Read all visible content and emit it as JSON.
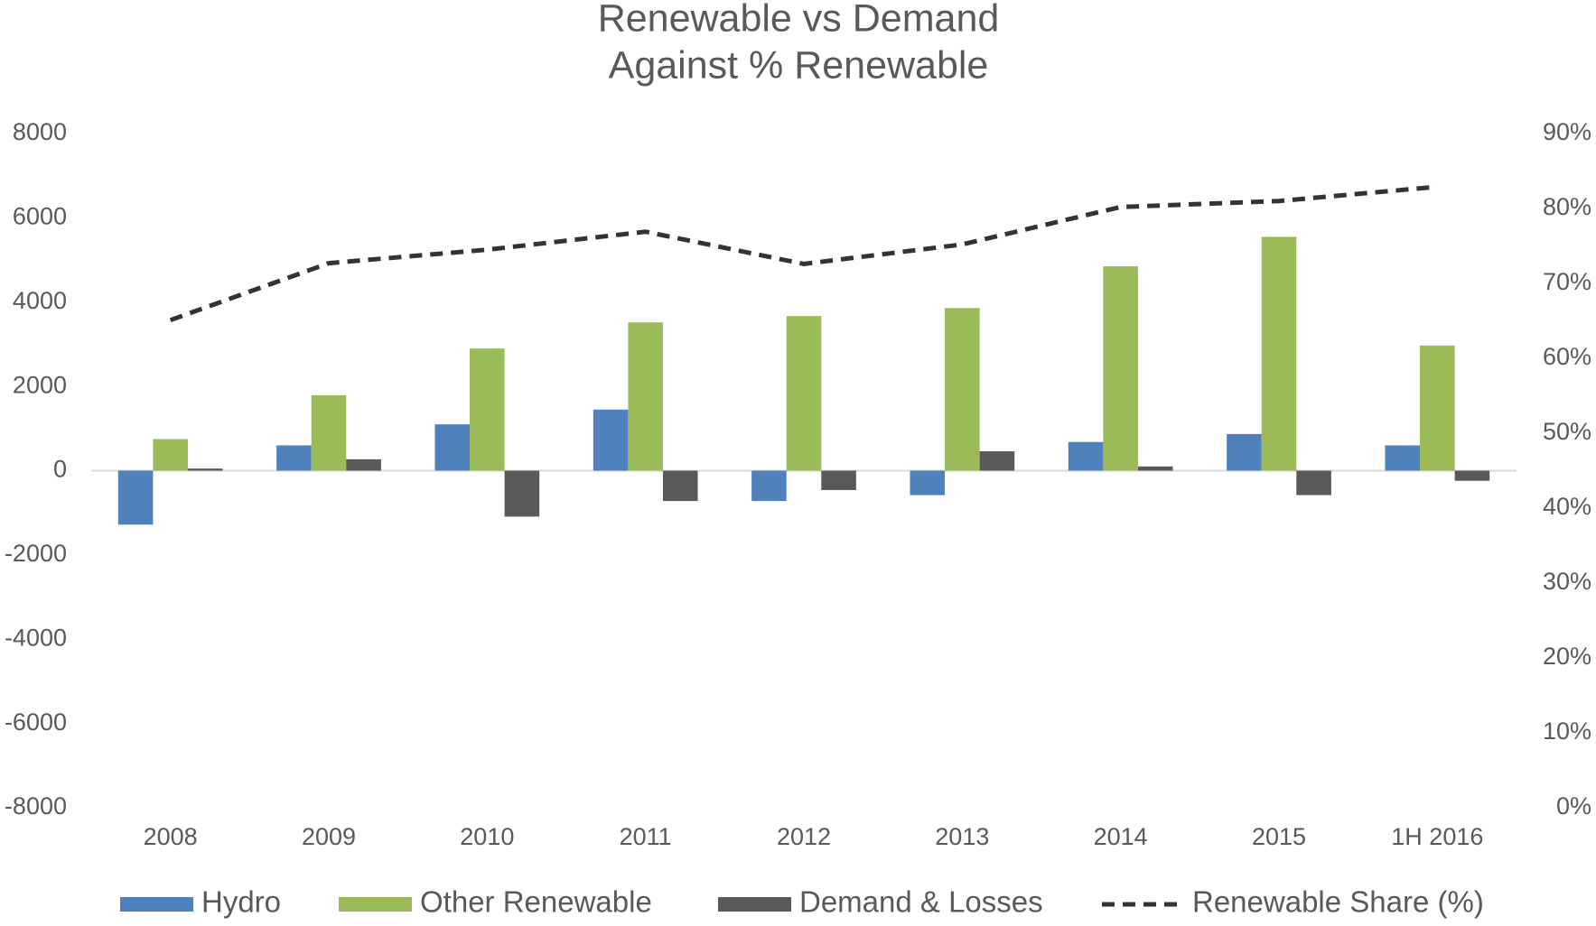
{
  "chart_data": {
    "type": "bar_line",
    "title": "Renewable vs Demand",
    "subtitle": "Against % Renewable",
    "categories": [
      "2008",
      "2009",
      "2010",
      "2011",
      "2012",
      "2013",
      "2014",
      "2015",
      "1H 2016"
    ],
    "series": [
      {
        "name": "Hydro",
        "color": "#4f81bd",
        "type": "bar",
        "values": [
          -1280,
          600,
          1100,
          1450,
          -720,
          -580,
          680,
          870,
          600
        ]
      },
      {
        "name": "Other Renewable",
        "color": "#9bbb59",
        "type": "bar",
        "values": [
          750,
          1790,
          2900,
          3520,
          3670,
          3860,
          4850,
          5550,
          2970
        ]
      },
      {
        "name": "Demand & Losses",
        "color": "#595959",
        "type": "bar",
        "values": [
          50,
          270,
          -1090,
          -720,
          -460,
          460,
          100,
          -580,
          -240
        ]
      },
      {
        "name": "Renewable Share (%)",
        "color": "#333333",
        "type": "line",
        "axis": "y2",
        "values": [
          65.1,
          72.7,
          74.5,
          76.9,
          72.6,
          75.2,
          80.2,
          81.0,
          82.9
        ]
      }
    ],
    "ylim": [
      -8000,
      8000
    ],
    "yticks": [
      -8000,
      -6000,
      -4000,
      -2000,
      0,
      2000,
      4000,
      6000,
      8000
    ],
    "y2lim": [
      0,
      90
    ],
    "y2ticks": [
      {
        "value": 0,
        "label": "0%"
      },
      {
        "value": 10,
        "label": "10%"
      },
      {
        "value": 20,
        "label": "20%"
      },
      {
        "value": 30,
        "label": "30%"
      },
      {
        "value": 40,
        "label": "40%"
      },
      {
        "value": 50,
        "label": "50%"
      },
      {
        "value": 60,
        "label": "60%"
      },
      {
        "value": 70,
        "label": "70%"
      },
      {
        "value": 80,
        "label": "80%"
      },
      {
        "value": 90,
        "label": "90%"
      }
    ],
    "grid": false,
    "legend": "bottom"
  }
}
